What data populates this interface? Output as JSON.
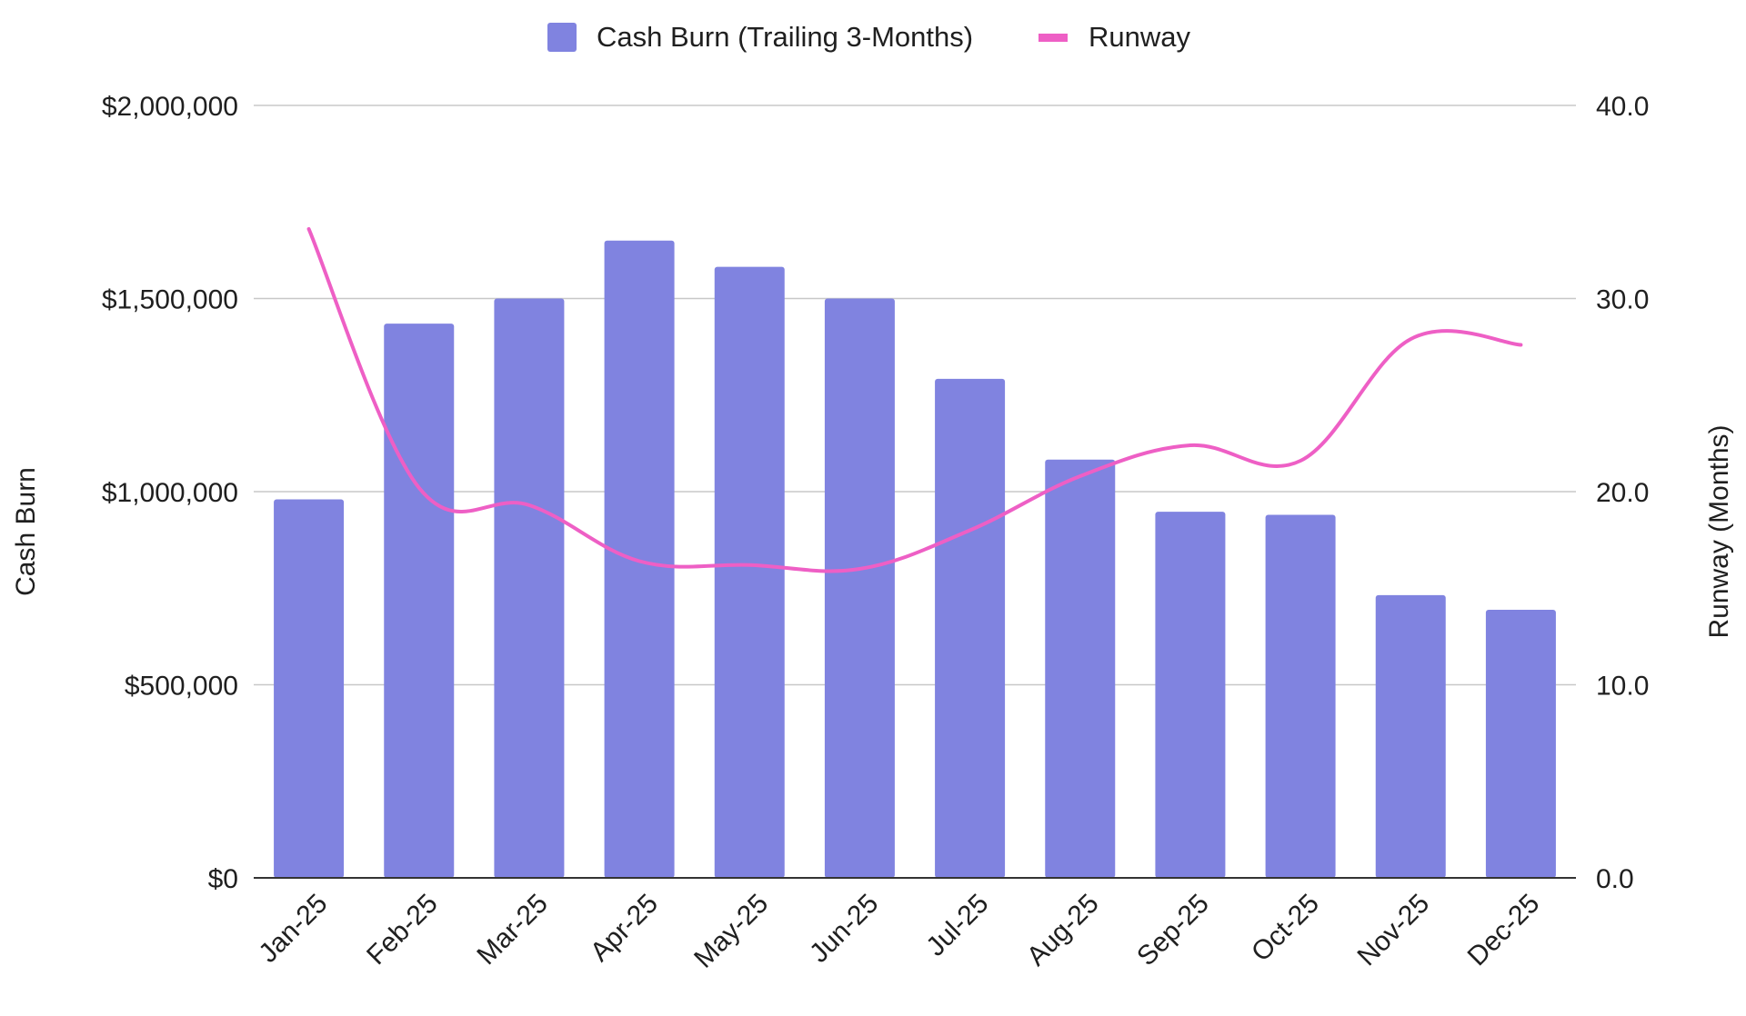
{
  "chart_data": {
    "type": "bar",
    "categories": [
      "Jan-25",
      "Feb-25",
      "Mar-25",
      "Apr-25",
      "May-25",
      "Jun-25",
      "Jul-25",
      "Aug-25",
      "Sep-25",
      "Oct-25",
      "Nov-25",
      "Dec-25"
    ],
    "series": [
      {
        "name": "Cash Burn (Trailing 3-Months)",
        "type": "bar",
        "axis": "left",
        "color": "#8083e0",
        "values": [
          980000,
          1435000,
          1500000,
          1650000,
          1582000,
          1500000,
          1292000,
          1083000,
          948000,
          940000,
          732000,
          694000
        ]
      },
      {
        "name": "Runway",
        "type": "line",
        "axis": "right",
        "smooth": true,
        "color": "#ee5fc5",
        "values": [
          33.6,
          20.2,
          19.3,
          16.4,
          16.2,
          16.0,
          18.0,
          20.8,
          22.4,
          21.6,
          27.9,
          27.6
        ]
      }
    ],
    "left_axis": {
      "label": "Cash Burn",
      "ylim": [
        0,
        2000000
      ],
      "ticks": [
        0,
        500000,
        1000000,
        1500000,
        2000000
      ],
      "tick_labels": [
        "$0",
        "$500,000",
        "$1,000,000",
        "$1,500,000",
        "$2,000,000"
      ]
    },
    "right_axis": {
      "label": "Runway (Months)",
      "ylim": [
        0,
        40
      ],
      "ticks": [
        0,
        10,
        20,
        30,
        40
      ],
      "tick_labels": [
        "0.0",
        "10.0",
        "20.0",
        "30.0",
        "40.0"
      ]
    },
    "grid": true,
    "legend": "top-center",
    "xlabel": "",
    "title": ""
  }
}
